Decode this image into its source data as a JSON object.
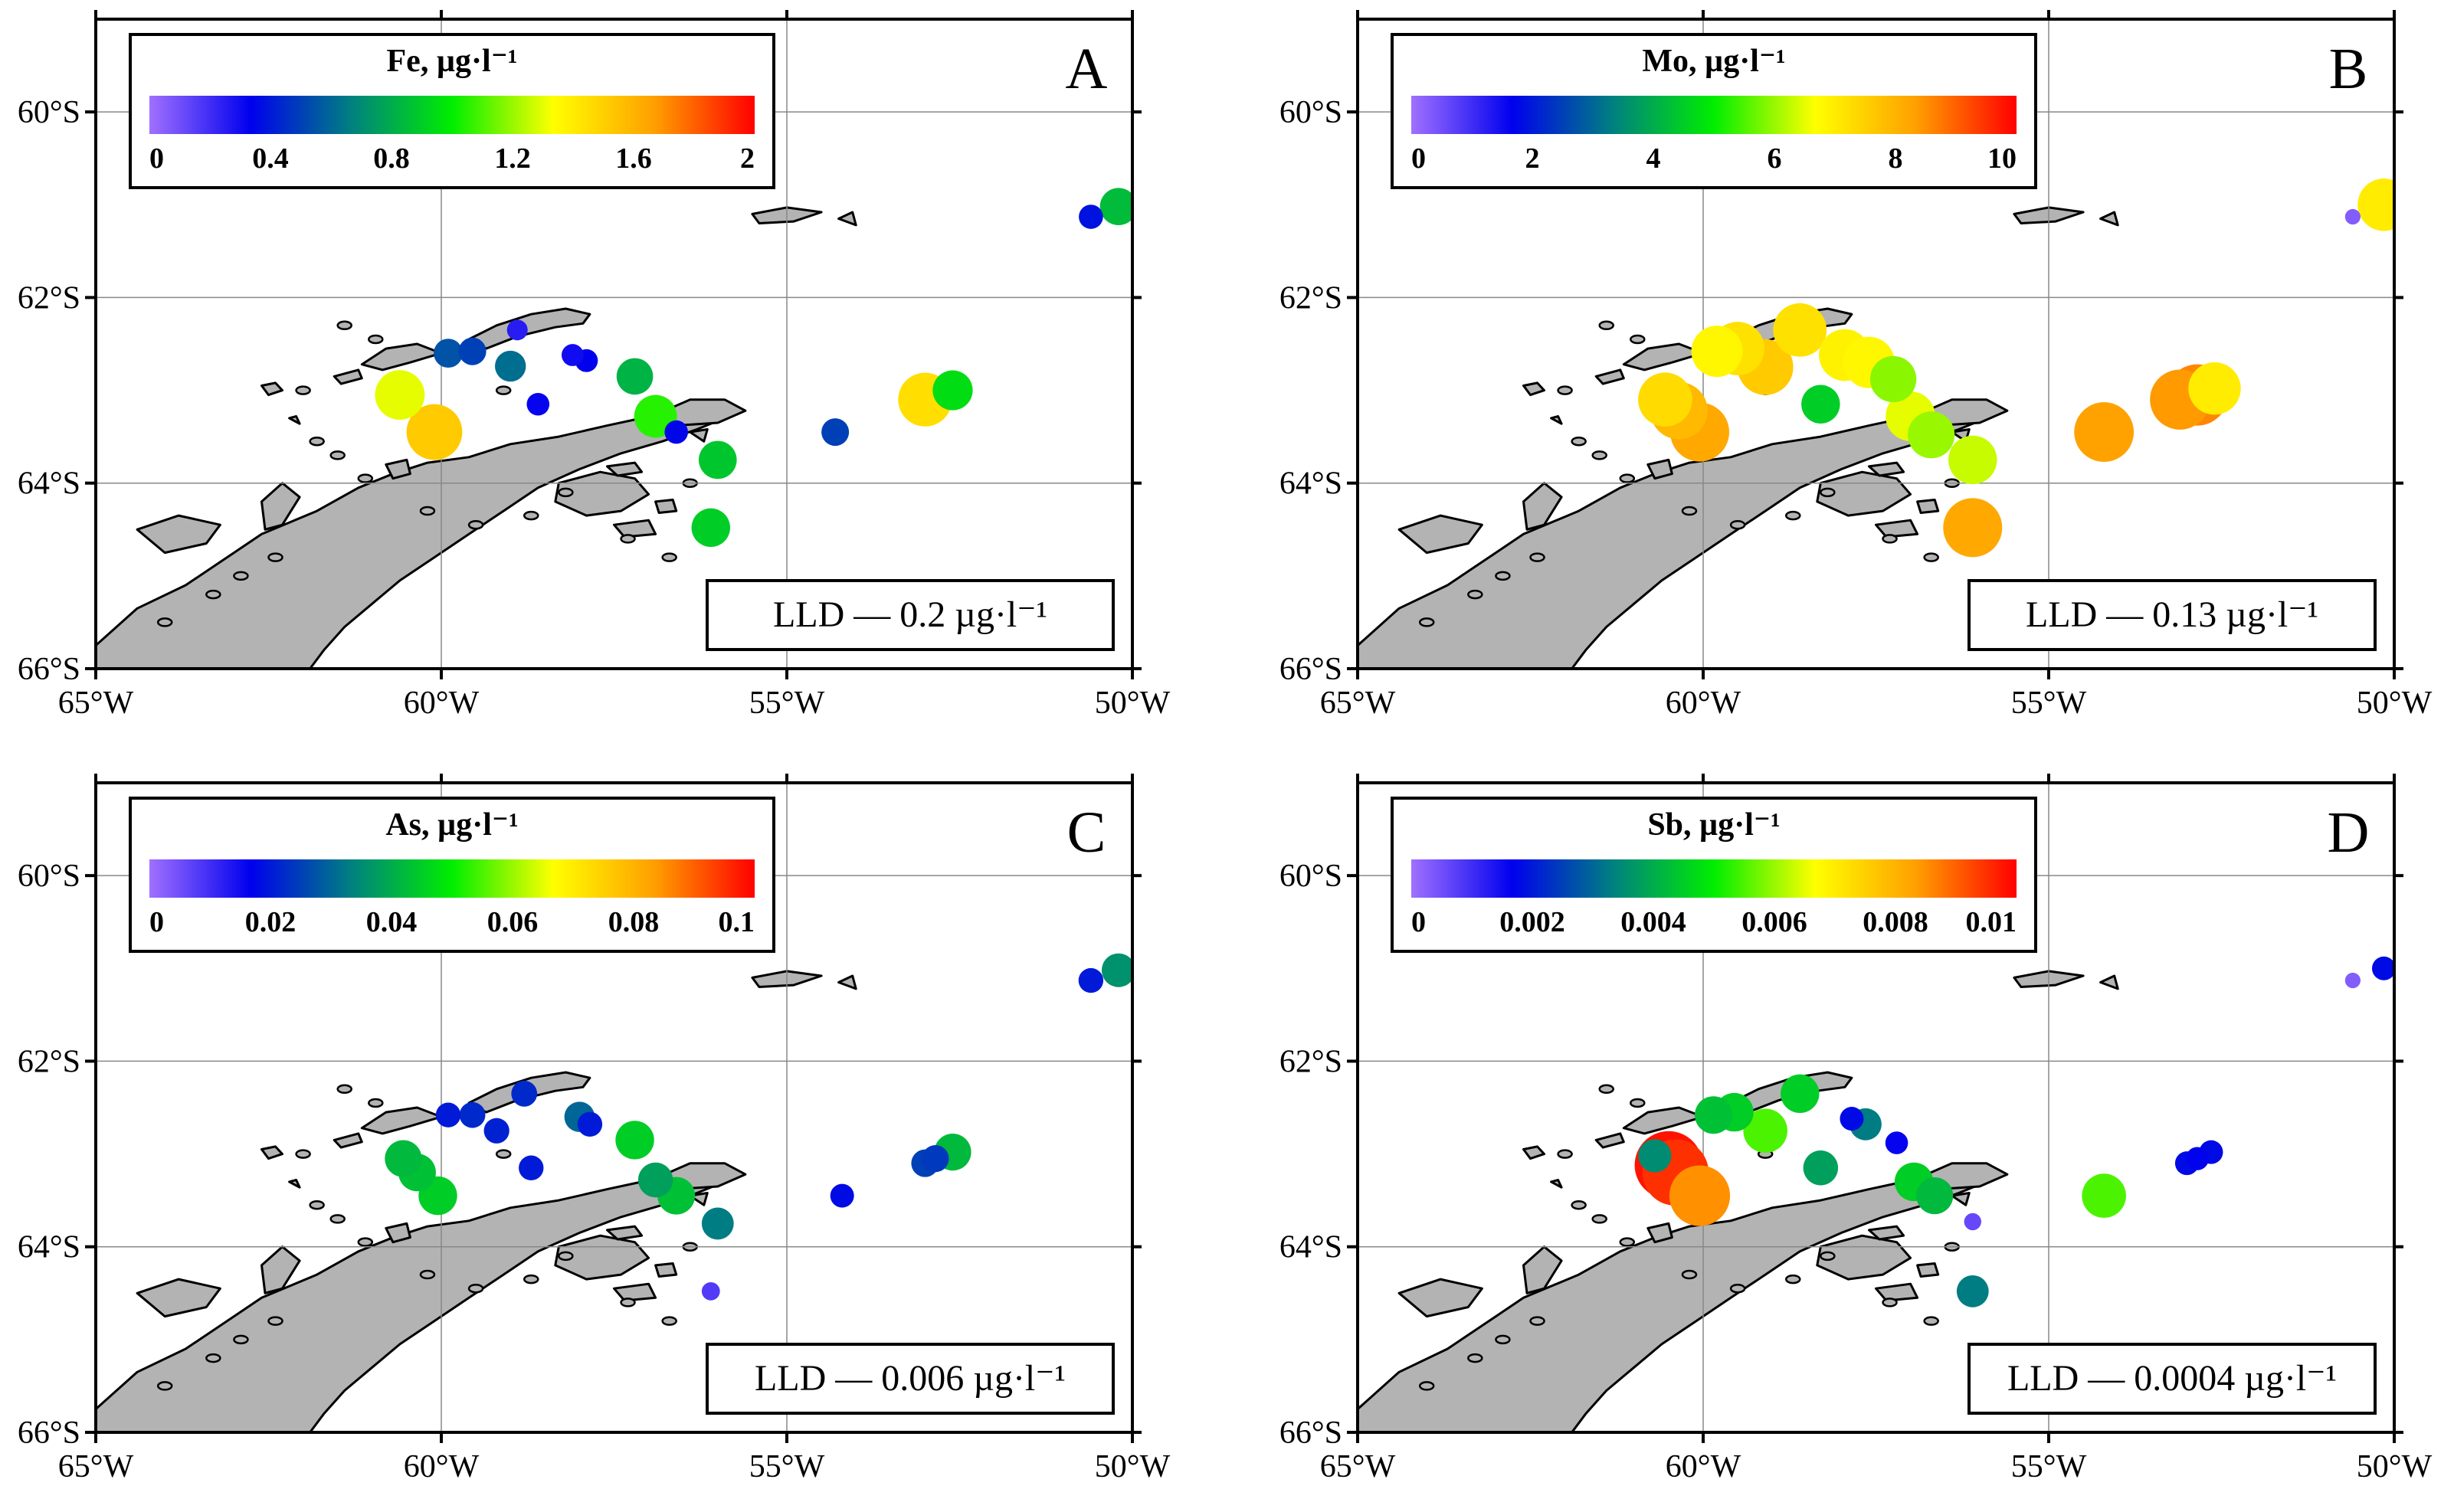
{
  "colors": {
    "land": "#b3b3b3",
    "coast": "#000000",
    "grid": "#888888",
    "colormap": [
      "#a070ff",
      "#0000ee",
      "#008080",
      "#00ee00",
      "#ffff00",
      "#ffa000",
      "#ff0000"
    ]
  },
  "axes": {
    "lon_ticks": [
      "65°W",
      "60°W",
      "55°W",
      "50°W"
    ],
    "lat_ticks": [
      "60°S",
      "62°S",
      "64°S",
      "66°S"
    ],
    "lon_range": [
      -65,
      -50
    ],
    "lat_range": [
      -59,
      -66
    ],
    "lon_grid": [
      -60,
      -55
    ],
    "lat_grid": [
      -60,
      -62,
      -64
    ]
  },
  "panels": [
    {
      "letter": "A",
      "legend_title": "Fe, µg·l⁻¹",
      "tick_labels": [
        "0",
        "0.4",
        "0.8",
        "1.2",
        "1.6",
        "2"
      ],
      "value_range": [
        0,
        2
      ],
      "lld_label": "LLD — 0.2 µg·l⁻¹",
      "points": [
        {
          "lon": -50.6,
          "lat": -61.13,
          "value": 0.38
        },
        {
          "lon": -50.2,
          "lat": -61.02,
          "value": 0.85
        },
        {
          "lon": -58.9,
          "lat": -62.35,
          "value": 0.25
        },
        {
          "lon": -59.9,
          "lat": -62.6,
          "value": 0.55
        },
        {
          "lon": -59.55,
          "lat": -62.58,
          "value": 0.5
        },
        {
          "lon": -59.0,
          "lat": -62.74,
          "value": 0.62
        },
        {
          "lon": -58.1,
          "lat": -62.62,
          "value": 0.3
        },
        {
          "lon": -57.9,
          "lat": -62.68,
          "value": 0.33
        },
        {
          "lon": -58.6,
          "lat": -63.15,
          "value": 0.32
        },
        {
          "lon": -57.2,
          "lat": -62.85,
          "value": 0.82
        },
        {
          "lon": -60.6,
          "lat": -63.05,
          "value": 1.3
        },
        {
          "lon": -60.1,
          "lat": -63.45,
          "value": 1.52
        },
        {
          "lon": -56.9,
          "lat": -63.28,
          "value": 1.05
        },
        {
          "lon": -56.6,
          "lat": -63.45,
          "value": 0.35
        },
        {
          "lon": -56.0,
          "lat": -63.75,
          "value": 0.88
        },
        {
          "lon": -56.1,
          "lat": -64.48,
          "value": 0.9
        },
        {
          "lon": -54.3,
          "lat": -63.45,
          "value": 0.5
        },
        {
          "lon": -53.0,
          "lat": -63.1,
          "value": 1.45
        },
        {
          "lon": -52.6,
          "lat": -63.0,
          "value": 0.95
        }
      ]
    },
    {
      "letter": "B",
      "legend_title": "Mo, µg·l⁻¹",
      "tick_labels": [
        "0",
        "2",
        "4",
        "6",
        "8",
        "10"
      ],
      "value_range": [
        0,
        10
      ],
      "lld_label": "LLD — 0.13 µg·l⁻¹",
      "points": [
        {
          "lon": -50.6,
          "lat": -61.13,
          "value": 0.3
        },
        {
          "lon": -50.15,
          "lat": -61.0,
          "value": 7.0
        },
        {
          "lon": -59.8,
          "lat": -62.58,
          "value": 6.8
        },
        {
          "lon": -59.5,
          "lat": -62.55,
          "value": 7.2
        },
        {
          "lon": -59.1,
          "lat": -62.75,
          "value": 7.6
        },
        {
          "lon": -58.6,
          "lat": -62.35,
          "value": 7.2
        },
        {
          "lon": -57.95,
          "lat": -62.62,
          "value": 6.9
        },
        {
          "lon": -57.6,
          "lat": -62.7,
          "value": 6.8
        },
        {
          "lon": -57.25,
          "lat": -62.88,
          "value": 5.9
        },
        {
          "lon": -58.3,
          "lat": -63.15,
          "value": 4.5
        },
        {
          "lon": -60.55,
          "lat": -63.1,
          "value": 7.3
        },
        {
          "lon": -60.35,
          "lat": -63.22,
          "value": 7.9
        },
        {
          "lon": -60.05,
          "lat": -63.45,
          "value": 8.2
        },
        {
          "lon": -57.0,
          "lat": -63.28,
          "value": 6.5
        },
        {
          "lon": -56.7,
          "lat": -63.48,
          "value": 6.0
        },
        {
          "lon": -56.1,
          "lat": -63.75,
          "value": 6.3
        },
        {
          "lon": -56.1,
          "lat": -64.48,
          "value": 8.2
        },
        {
          "lon": -54.2,
          "lat": -63.45,
          "value": 8.3
        },
        {
          "lon": -53.1,
          "lat": -63.1,
          "value": 8.4
        },
        {
          "lon": -52.85,
          "lat": -63.05,
          "value": 8.6
        },
        {
          "lon": -52.6,
          "lat": -62.98,
          "value": 7.0
        }
      ]
    },
    {
      "letter": "C",
      "legend_title": "As, µg·l⁻¹",
      "tick_labels": [
        "0",
        "0.02",
        "0.04",
        "0.06",
        "0.08",
        "0.1"
      ],
      "value_range": [
        0,
        0.1
      ],
      "lld_label": "LLD — 0.006 µg·l⁻¹",
      "points": [
        {
          "lon": -50.6,
          "lat": -61.13,
          "value": 0.02
        },
        {
          "lon": -50.2,
          "lat": -61.02,
          "value": 0.036
        },
        {
          "lon": -59.9,
          "lat": -62.58,
          "value": 0.02
        },
        {
          "lon": -59.55,
          "lat": -62.58,
          "value": 0.022
        },
        {
          "lon": -59.2,
          "lat": -62.75,
          "value": 0.021
        },
        {
          "lon": -58.8,
          "lat": -62.35,
          "value": 0.022
        },
        {
          "lon": -58.0,
          "lat": -62.6,
          "value": 0.03
        },
        {
          "lon": -57.85,
          "lat": -62.68,
          "value": 0.02
        },
        {
          "lon": -58.7,
          "lat": -63.15,
          "value": 0.02
        },
        {
          "lon": -57.2,
          "lat": -62.85,
          "value": 0.045
        },
        {
          "lon": -60.55,
          "lat": -63.05,
          "value": 0.042
        },
        {
          "lon": -60.35,
          "lat": -63.2,
          "value": 0.043
        },
        {
          "lon": -60.05,
          "lat": -63.45,
          "value": 0.045
        },
        {
          "lon": -56.9,
          "lat": -63.28,
          "value": 0.038
        },
        {
          "lon": -56.6,
          "lat": -63.45,
          "value": 0.043
        },
        {
          "lon": -56.0,
          "lat": -63.75,
          "value": 0.033
        },
        {
          "lon": -56.1,
          "lat": -64.48,
          "value": 0.008
        },
        {
          "lon": -54.2,
          "lat": -63.45,
          "value": 0.018
        },
        {
          "lon": -53.0,
          "lat": -63.1,
          "value": 0.025
        },
        {
          "lon": -52.85,
          "lat": -63.05,
          "value": 0.024
        },
        {
          "lon": -52.6,
          "lat": -62.98,
          "value": 0.042
        }
      ]
    },
    {
      "letter": "D",
      "legend_title": "Sb, µg·l⁻¹",
      "tick_labels": [
        "0",
        "0.002",
        "0.004",
        "0.006",
        "0.008",
        "0.01"
      ],
      "value_range": [
        0,
        0.01
      ],
      "lld_label": "LLD — 0.0004 µg·l⁻¹",
      "points": [
        {
          "lon": -50.6,
          "lat": -61.13,
          "value": 0.0003
        },
        {
          "lon": -50.15,
          "lat": -61.0,
          "value": 0.0018
        },
        {
          "lon": -59.85,
          "lat": -62.58,
          "value": 0.0043
        },
        {
          "lon": -59.55,
          "lat": -62.55,
          "value": 0.0045
        },
        {
          "lon": -59.1,
          "lat": -62.75,
          "value": 0.0055
        },
        {
          "lon": -58.6,
          "lat": -62.35,
          "value": 0.0045
        },
        {
          "lon": -57.85,
          "lat": -62.62,
          "value": 0.0018
        },
        {
          "lon": -57.65,
          "lat": -62.68,
          "value": 0.0033
        },
        {
          "lon": -57.2,
          "lat": -62.88,
          "value": 0.0016
        },
        {
          "lon": -58.3,
          "lat": -63.15,
          "value": 0.0038
        },
        {
          "lon": -60.5,
          "lat": -63.12,
          "value": 0.0098
        },
        {
          "lon": -60.4,
          "lat": -63.2,
          "value": 0.0095
        },
        {
          "lon": -60.05,
          "lat": -63.45,
          "value": 0.0085
        },
        {
          "lon": -60.7,
          "lat": -63.02,
          "value": 0.0035
        },
        {
          "lon": -56.95,
          "lat": -63.3,
          "value": 0.0045
        },
        {
          "lon": -56.65,
          "lat": -63.45,
          "value": 0.0042
        },
        {
          "lon": -56.1,
          "lat": -63.73,
          "value": 0.0006
        },
        {
          "lon": -56.1,
          "lat": -64.48,
          "value": 0.0033
        },
        {
          "lon": -54.2,
          "lat": -63.45,
          "value": 0.0055
        },
        {
          "lon": -53.0,
          "lat": -63.1,
          "value": 0.0018
        },
        {
          "lon": -52.85,
          "lat": -63.05,
          "value": 0.0017
        },
        {
          "lon": -52.65,
          "lat": -62.98,
          "value": 0.0018
        }
      ]
    }
  ]
}
